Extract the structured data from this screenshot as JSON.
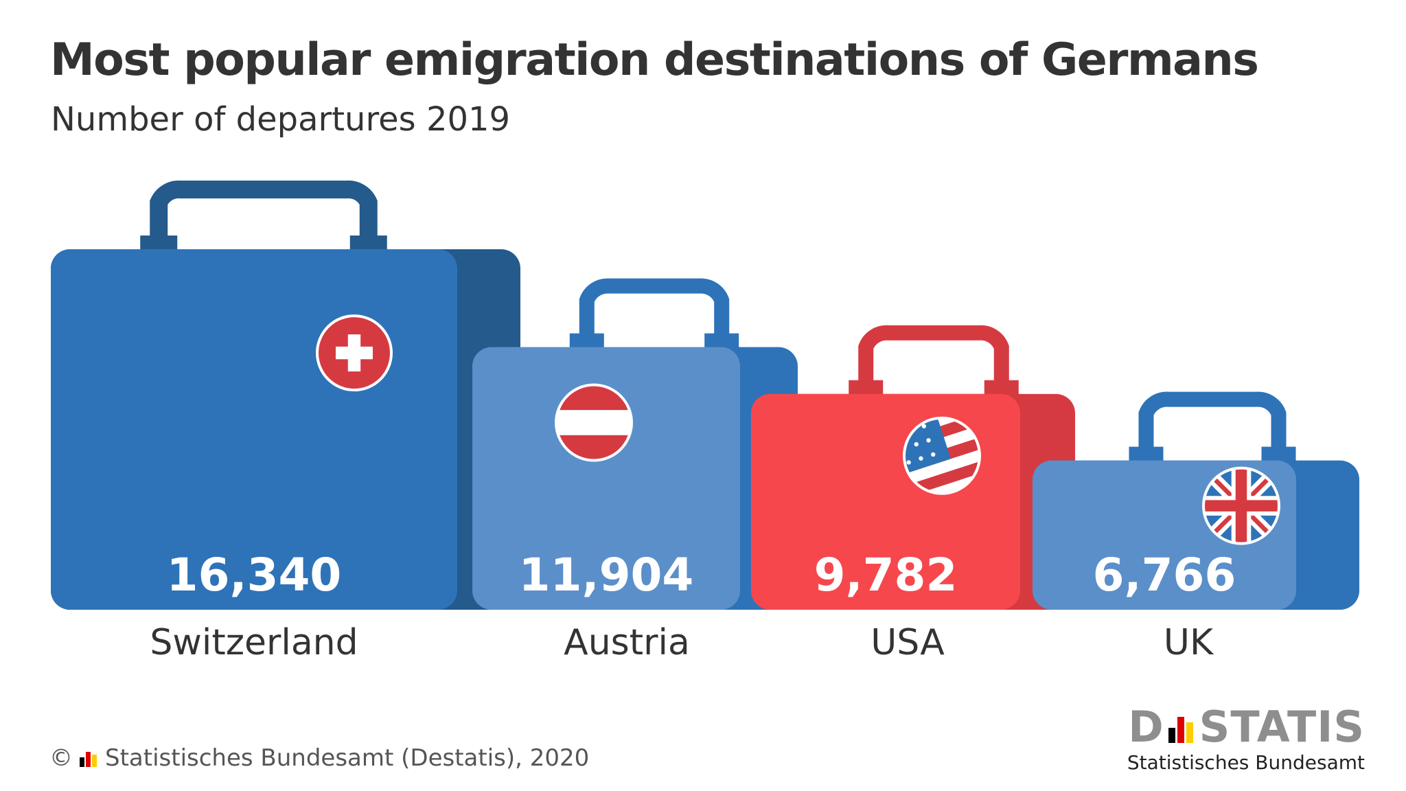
{
  "header": {
    "title": "Most popular emigration destinations of Germans",
    "subtitle": "Number of departures 2019"
  },
  "chart_data": {
    "type": "bar",
    "title": "Most popular emigration destinations of Germans",
    "subtitle": "Number of departures 2019",
    "categories": [
      "Switzerland",
      "Austria",
      "USA",
      "UK"
    ],
    "values": [
      16340,
      11904,
      9782,
      6766
    ],
    "value_labels": [
      "16,340",
      "11,904",
      "9,782",
      "6,766"
    ],
    "flag_icons": [
      "swiss-flag-icon",
      "austrian-flag-icon",
      "us-flag-icon",
      "uk-flag-icon"
    ],
    "colors": {
      "Switzerland": {
        "front": "#2e73b8",
        "back": "#245a8c",
        "handle": "#245a8c"
      },
      "Austria": {
        "front": "#5b8fc9",
        "back": "#2e73b8",
        "handle": "#2e73b8"
      },
      "USA": {
        "front": "#f6474d",
        "back": "#d63a41",
        "handle": "#d63a41"
      },
      "UK": {
        "front": "#5b8fc9",
        "back": "#2e73b8",
        "handle": "#2e73b8"
      }
    },
    "grid": false,
    "legend": "none"
  },
  "footer": {
    "copyright_symbol": "©",
    "source": "Statistisches Bundesamt (Destatis), 2020"
  },
  "logo": {
    "word_start": "D",
    "word_end": "STATIS",
    "subtitle": "Statistisches Bundesamt",
    "flag_colors": [
      "#000000",
      "#dd0000",
      "#ffcc00"
    ]
  }
}
